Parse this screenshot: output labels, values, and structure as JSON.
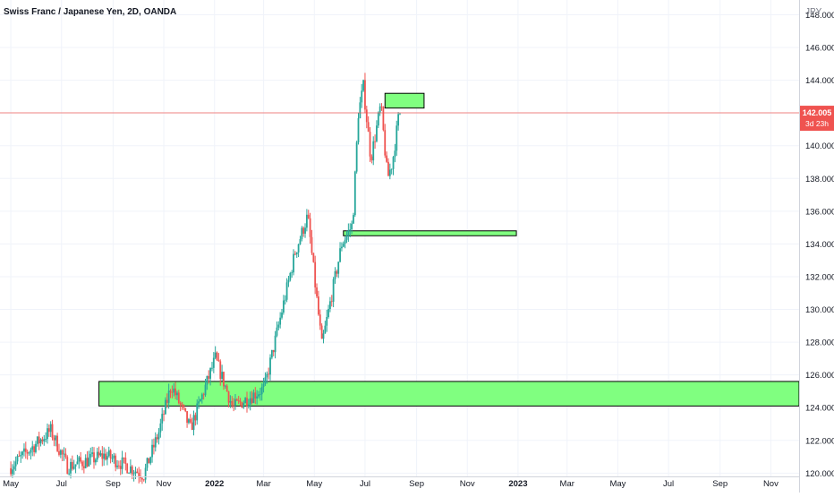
{
  "header": {
    "title": "Swiss Franc / Japanese Yen, 2D, OANDA"
  },
  "price_scale": {
    "currency": "JPY",
    "ticks": [
      "148.000",
      "146.000",
      "144.000",
      "142.000",
      "140.000",
      "138.000",
      "136.000",
      "134.000",
      "132.000",
      "130.000",
      "128.000",
      "126.000",
      "124.000",
      "122.000",
      "120.000"
    ],
    "last_price_label": "142.005",
    "countdown_label": "3d 23h"
  },
  "time_scale": {
    "ticks": [
      "May",
      "Jul",
      "Sep",
      "Nov",
      "2022",
      "Mar",
      "May",
      "Jul",
      "Sep",
      "Nov",
      "2023",
      "Mar",
      "May",
      "Jul",
      "Sep",
      "Nov"
    ]
  },
  "colors": {
    "up": "#26a69a",
    "down": "#ef5350",
    "zone_fill": "#80ff80",
    "zone_border": "#000000",
    "price_line": "#ef5350",
    "axis_text": "#131722",
    "grid": "#f0f3fa"
  },
  "chart_data": {
    "type": "candlestick",
    "title": "Swiss Franc / Japanese Yen, 2D, OANDA",
    "ylabel": "JPY",
    "ylim": [
      119.8,
      148.9
    ],
    "xlim": [
      "2021-04-18",
      "2023-12-05"
    ],
    "last_price": 142.005,
    "key_points": [
      {
        "date": "2021-05-01",
        "price": 120.3
      },
      {
        "date": "2021-06-20",
        "price": 122.6
      },
      {
        "date": "2021-07-10",
        "price": 120.4
      },
      {
        "date": "2021-08-25",
        "price": 121.1
      },
      {
        "date": "2021-10-10",
        "price": 119.9
      },
      {
        "date": "2021-10-28",
        "price": 122.5
      },
      {
        "date": "2021-11-12",
        "price": 125.4
      },
      {
        "date": "2021-12-05",
        "price": 122.7
      },
      {
        "date": "2022-01-04",
        "price": 127.0
      },
      {
        "date": "2022-01-25",
        "price": 124.0
      },
      {
        "date": "2022-03-04",
        "price": 125.2
      },
      {
        "date": "2022-04-10",
        "price": 133.5
      },
      {
        "date": "2022-04-25",
        "price": 135.7
      },
      {
        "date": "2022-05-12",
        "price": 127.8
      },
      {
        "date": "2022-06-05",
        "price": 134.0
      },
      {
        "date": "2022-06-18",
        "price": 135.2
      },
      {
        "date": "2022-06-25",
        "price": 142.0
      },
      {
        "date": "2022-07-01",
        "price": 143.6
      },
      {
        "date": "2022-07-10",
        "price": 139.2
      },
      {
        "date": "2022-07-22",
        "price": 142.5
      },
      {
        "date": "2022-07-30",
        "price": 138.0
      },
      {
        "date": "2022-08-05",
        "price": 139.0
      },
      {
        "date": "2022-08-13",
        "price": 142.0
      }
    ],
    "zones": [
      {
        "from": "2021-08-15",
        "to": "2023-12-05",
        "low": 124.1,
        "high": 125.6
      },
      {
        "from": "2022-06-05",
        "to": "2022-12-30",
        "low": 134.5,
        "high": 134.8
      },
      {
        "from": "2022-07-25",
        "to": "2022-09-10",
        "low": 142.3,
        "high": 143.2
      }
    ]
  }
}
